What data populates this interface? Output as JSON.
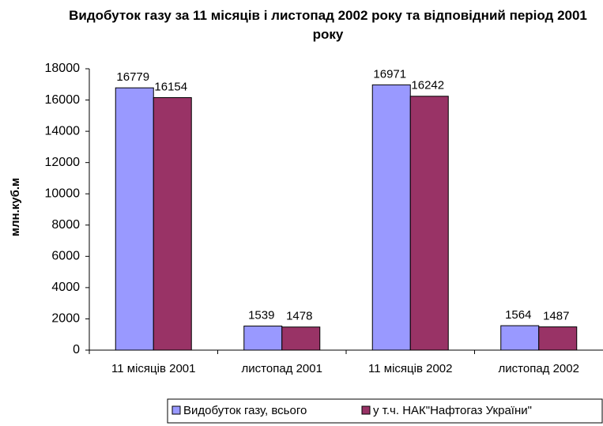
{
  "chart_data": {
    "type": "bar",
    "title": "Видобуток газу за 11 місяців і листопад 2002 року та відповідний період 2001 року",
    "y_label": "млн.куб.м",
    "categories": [
      "11 місяців 2001",
      "листопад 2001",
      "11 місяців 2002",
      "листопад 2002"
    ],
    "series": [
      {
        "name": "Видобуток газу, всього",
        "color": "#9999ff",
        "values": [
          16779,
          1539,
          16971,
          1564
        ]
      },
      {
        "name": "у т.ч. НАК\"Нафтогаз України\"",
        "color": "#993366",
        "values": [
          16154,
          1478,
          16242,
          1487
        ]
      }
    ],
    "ylim": [
      0,
      18000
    ],
    "yticks": [
      0,
      2000,
      4000,
      6000,
      8000,
      10000,
      12000,
      14000,
      16000,
      18000
    ],
    "grid": false,
    "legend": "bottom-right"
  }
}
